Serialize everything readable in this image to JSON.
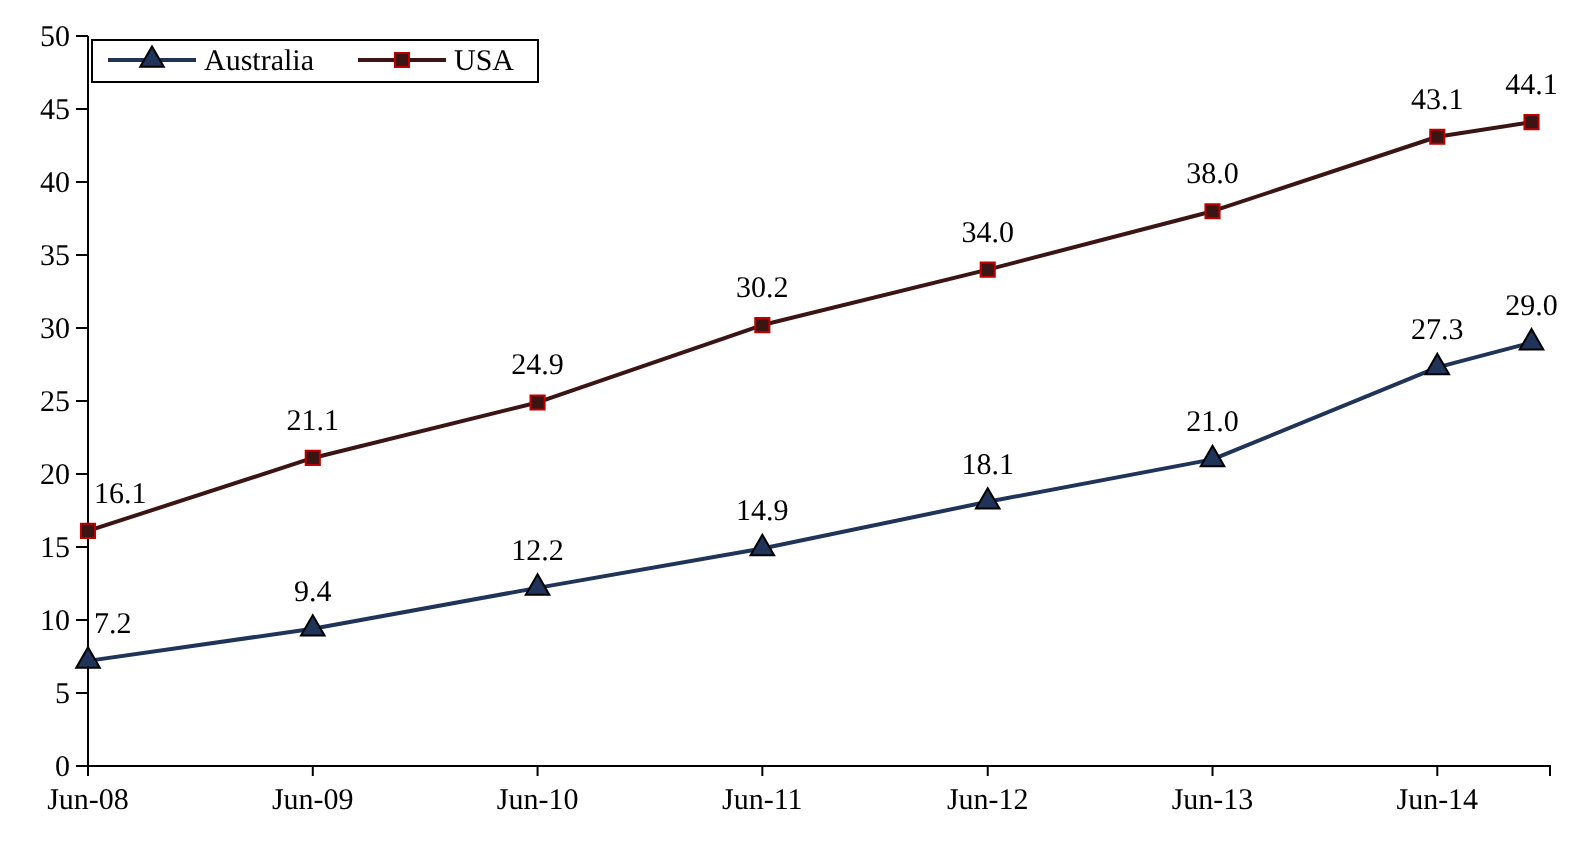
{
  "chart_data": {
    "type": "line",
    "x": [
      "2008-06",
      "2009-06",
      "2010-06",
      "2011-06",
      "2012-06",
      "2013-06",
      "2014-06",
      "2014-11"
    ],
    "xlim": [
      "2008-06",
      "2014-12"
    ],
    "xticks": [
      {
        "value": "2008-06",
        "label": "Jun-08"
      },
      {
        "value": "2009-06",
        "label": "Jun-09"
      },
      {
        "value": "2010-06",
        "label": "Jun-10"
      },
      {
        "value": "2011-06",
        "label": "Jun-11"
      },
      {
        "value": "2012-06",
        "label": "Jun-12"
      },
      {
        "value": "2013-06",
        "label": "Jun-13"
      },
      {
        "value": "2014-06",
        "label": "Jun-14"
      }
    ],
    "ylim": [
      0,
      50
    ],
    "yticks": [
      0,
      5,
      10,
      15,
      20,
      25,
      30,
      35,
      40,
      45,
      50
    ],
    "series": [
      {
        "name": "Australia",
        "color": "#1f3458",
        "marker": "triangle",
        "values": [
          7.2,
          9.4,
          12.2,
          14.9,
          18.1,
          21.0,
          27.3,
          29.0
        ],
        "value_labels": [
          "7.2",
          "9.4",
          "12.2",
          "14.9",
          "18.1",
          "21.0",
          "27.3",
          "29.0"
        ]
      },
      {
        "name": "USA",
        "color": "#3b1414",
        "marker": "square",
        "values": [
          16.1,
          21.1,
          24.9,
          30.2,
          34.0,
          38.0,
          43.1,
          44.1
        ],
        "value_labels": [
          "16.1",
          "21.1",
          "24.9",
          "30.2",
          "34.0",
          "38.0",
          "43.1",
          "44.1"
        ]
      }
    ],
    "legend": "top left",
    "grid": false,
    "line_style": "solid"
  }
}
